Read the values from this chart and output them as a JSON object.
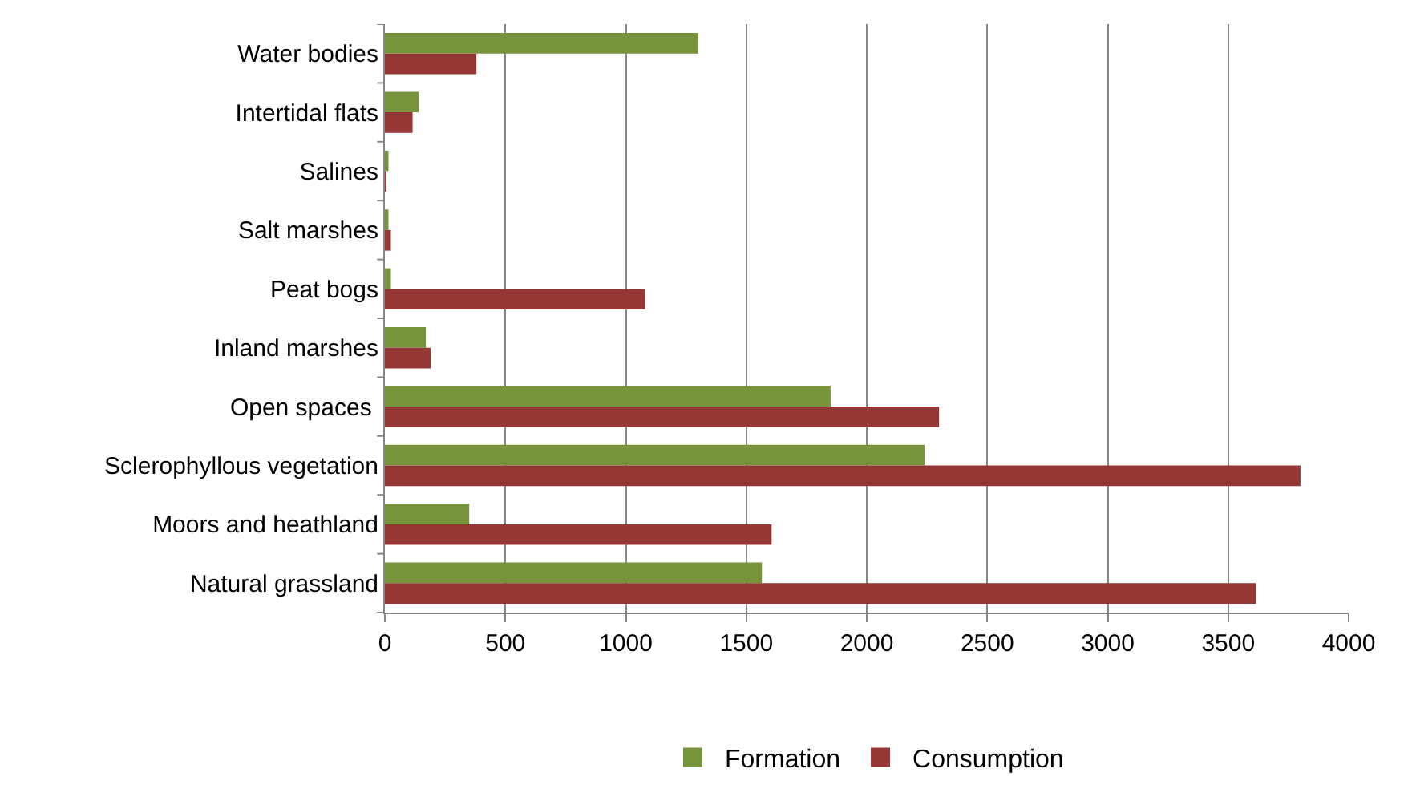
{
  "chart_data": {
    "type": "bar",
    "orientation": "horizontal",
    "categories": [
      "Water bodies",
      "Intertidal flats",
      "Salines",
      "Salt marshes",
      "Peat bogs",
      "Inland marshes",
      "Open spaces ",
      "Sclerophyllous vegetation",
      "Moors and heathland",
      "Natural grassland"
    ],
    "series": [
      {
        "name": "Formation",
        "color": "#77933c",
        "values": [
          1300,
          140,
          15,
          15,
          25,
          170,
          1850,
          2240,
          350,
          1565
        ]
      },
      {
        "name": "Consumption",
        "color": "#953735",
        "values": [
          380,
          115,
          3,
          25,
          1080,
          190,
          2300,
          3800,
          1605,
          3615
        ]
      }
    ],
    "xlim": [
      0,
      4000
    ],
    "xticks": [
      0,
      500,
      1000,
      1500,
      2000,
      2500,
      3000,
      3500,
      4000
    ],
    "grid": "x",
    "legend": "bottom"
  }
}
